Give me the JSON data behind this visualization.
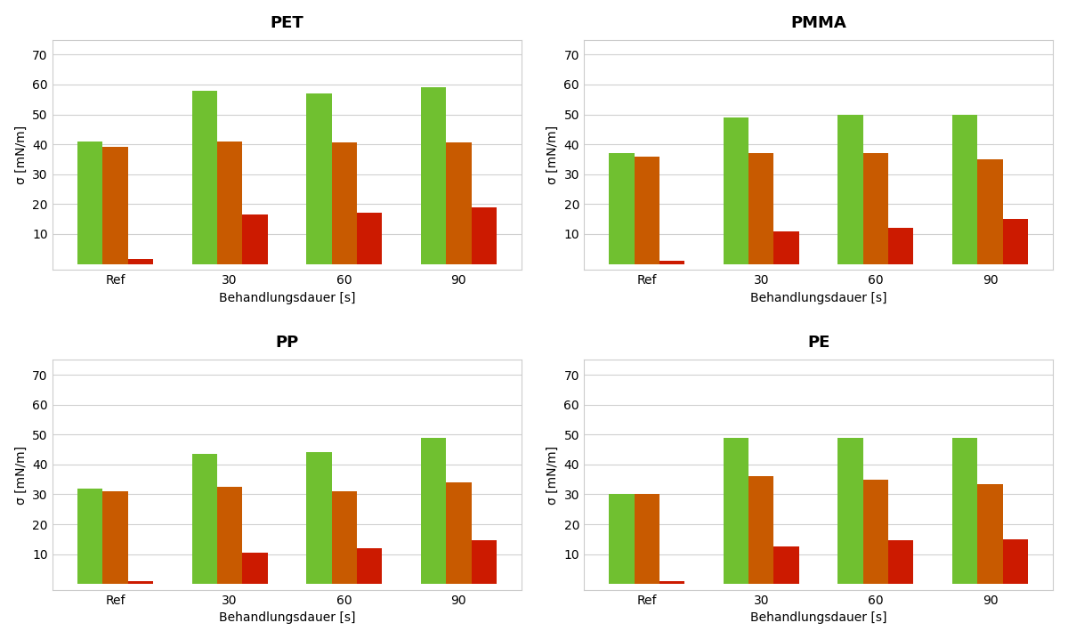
{
  "subplots": [
    {
      "title": "PET",
      "categories": [
        "Ref",
        "30",
        "60",
        "90"
      ],
      "green": [
        41,
        58,
        57,
        59
      ],
      "orange": [
        39,
        41,
        40.5,
        40.5
      ],
      "red": [
        1.5,
        16.5,
        17,
        19
      ]
    },
    {
      "title": "PMMA",
      "categories": [
        "Ref",
        "30",
        "60",
        "90"
      ],
      "green": [
        37,
        49,
        50,
        50
      ],
      "orange": [
        36,
        37,
        37,
        35
      ],
      "red": [
        1,
        11,
        12,
        15
      ]
    },
    {
      "title": "PP",
      "categories": [
        "Ref",
        "30",
        "60",
        "90"
      ],
      "green": [
        32,
        43.5,
        44,
        49
      ],
      "orange": [
        31,
        32.5,
        31,
        34
      ],
      "red": [
        1,
        10.5,
        12,
        14.5
      ]
    },
    {
      "title": "PE",
      "categories": [
        "Ref",
        "30",
        "60",
        "90"
      ],
      "green": [
        30,
        49,
        49,
        49
      ],
      "orange": [
        30,
        36,
        35,
        33.5
      ],
      "red": [
        1,
        12.5,
        14.5,
        15
      ]
    }
  ],
  "green_color": "#70c030",
  "orange_color": "#c85a00",
  "red_color": "#cc1a00",
  "xlabel": "Behandlungsdauer [s]",
  "ylabel": "σ [mN/m]",
  "ylim": [
    -2,
    75
  ],
  "yticks": [
    10,
    20,
    30,
    40,
    50,
    60,
    70
  ],
  "background_color": "#ffffff",
  "grid_color": "#d0d0d0",
  "title_fontsize": 13,
  "label_fontsize": 10,
  "tick_fontsize": 10,
  "bar_width": 0.22
}
